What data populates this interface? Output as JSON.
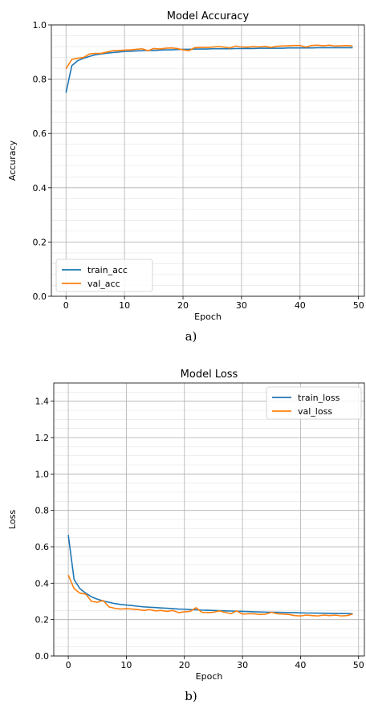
{
  "chart_data": [
    {
      "type": "line",
      "caption": "a)",
      "title": "Model Accuracy",
      "xlabel": "Epoch",
      "ylabel": "Accuracy",
      "xlim": [
        -2.5,
        51
      ],
      "ylim": [
        0.0,
        1.0
      ],
      "xticks": [
        0,
        10,
        20,
        30,
        40,
        50
      ],
      "yticks": [
        0.0,
        0.2,
        0.4,
        0.6,
        0.8,
        1.0
      ],
      "ytick_labels": [
        "0.0",
        "0.2",
        "0.4",
        "0.6",
        "0.8",
        "1.0"
      ],
      "minor_ystep": 0.04,
      "grid": "on",
      "legend": "lower-left",
      "series": [
        {
          "name": "train_acc",
          "color": "#1f77b4",
          "x": [
            0,
            1,
            2,
            3,
            4,
            5,
            6,
            7,
            8,
            9,
            10,
            11,
            12,
            13,
            14,
            15,
            16,
            17,
            18,
            19,
            20,
            21,
            22,
            23,
            24,
            25,
            26,
            27,
            28,
            29,
            30,
            31,
            32,
            33,
            34,
            35,
            36,
            37,
            38,
            39,
            40,
            41,
            42,
            43,
            44,
            45,
            46,
            47,
            48,
            49
          ],
          "values": [
            0.75,
            0.85,
            0.868,
            0.877,
            0.884,
            0.89,
            0.893,
            0.896,
            0.898,
            0.9,
            0.902,
            0.903,
            0.904,
            0.905,
            0.906,
            0.906,
            0.907,
            0.908,
            0.908,
            0.909,
            0.91,
            0.91,
            0.911,
            0.911,
            0.911,
            0.912,
            0.912,
            0.912,
            0.912,
            0.913,
            0.913,
            0.913,
            0.913,
            0.914,
            0.914,
            0.914,
            0.914,
            0.914,
            0.915,
            0.915,
            0.915,
            0.915,
            0.915,
            0.916,
            0.916,
            0.916,
            0.916,
            0.916,
            0.916,
            0.916
          ]
        },
        {
          "name": "val_acc",
          "color": "#ff7f0e",
          "x": [
            0,
            1,
            2,
            3,
            4,
            5,
            6,
            7,
            8,
            9,
            10,
            11,
            12,
            13,
            14,
            15,
            16,
            17,
            18,
            19,
            20,
            21,
            22,
            23,
            24,
            25,
            26,
            27,
            28,
            29,
            30,
            31,
            32,
            33,
            34,
            35,
            36,
            37,
            38,
            39,
            40,
            41,
            42,
            43,
            44,
            45,
            46,
            47,
            48,
            49
          ],
          "values": [
            0.838,
            0.873,
            0.877,
            0.88,
            0.893,
            0.895,
            0.895,
            0.9,
            0.905,
            0.906,
            0.907,
            0.908,
            0.91,
            0.912,
            0.905,
            0.913,
            0.911,
            0.914,
            0.915,
            0.913,
            0.908,
            0.905,
            0.916,
            0.917,
            0.917,
            0.918,
            0.92,
            0.918,
            0.915,
            0.922,
            0.919,
            0.918,
            0.92,
            0.919,
            0.921,
            0.917,
            0.921,
            0.922,
            0.923,
            0.924,
            0.924,
            0.918,
            0.924,
            0.925,
            0.923,
            0.925,
            0.922,
            0.923,
            0.924,
            0.922
          ]
        }
      ]
    },
    {
      "type": "line",
      "caption": "b)",
      "title": "Model Loss",
      "xlabel": "Epoch",
      "ylabel": "Loss",
      "xlim": [
        -2.5,
        51
      ],
      "ylim": [
        0.0,
        1.5
      ],
      "xticks": [
        0,
        10,
        20,
        30,
        40,
        50
      ],
      "yticks": [
        0.0,
        0.2,
        0.4,
        0.6,
        0.8,
        1.0,
        1.2,
        1.4
      ],
      "ytick_labels": [
        "0.0",
        "0.2",
        "0.4",
        "0.6",
        "0.8",
        "1.0",
        "1.2",
        "1.4"
      ],
      "minor_ystep": 0.05,
      "grid": "on",
      "legend": "top-right",
      "series": [
        {
          "name": "train_loss",
          "color": "#1f77b4",
          "x": [
            0,
            1,
            2,
            3,
            4,
            5,
            6,
            7,
            8,
            9,
            10,
            11,
            12,
            13,
            14,
            15,
            16,
            17,
            18,
            19,
            20,
            21,
            22,
            23,
            24,
            25,
            26,
            27,
            28,
            29,
            30,
            31,
            32,
            33,
            34,
            35,
            36,
            37,
            38,
            39,
            40,
            41,
            42,
            43,
            44,
            45,
            46,
            47,
            48,
            49
          ],
          "values": [
            0.665,
            0.42,
            0.37,
            0.345,
            0.325,
            0.312,
            0.302,
            0.295,
            0.288,
            0.283,
            0.28,
            0.277,
            0.273,
            0.27,
            0.268,
            0.266,
            0.264,
            0.262,
            0.26,
            0.258,
            0.257,
            0.255,
            0.254,
            0.252,
            0.251,
            0.25,
            0.249,
            0.248,
            0.247,
            0.246,
            0.245,
            0.244,
            0.243,
            0.242,
            0.241,
            0.24,
            0.24,
            0.239,
            0.238,
            0.238,
            0.237,
            0.236,
            0.236,
            0.235,
            0.235,
            0.234,
            0.234,
            0.233,
            0.233,
            0.232
          ]
        },
        {
          "name": "val_loss",
          "color": "#ff7f0e",
          "x": [
            0,
            1,
            2,
            3,
            4,
            5,
            6,
            7,
            8,
            9,
            10,
            11,
            12,
            13,
            14,
            15,
            16,
            17,
            18,
            19,
            20,
            21,
            22,
            23,
            24,
            25,
            26,
            27,
            28,
            29,
            30,
            31,
            32,
            33,
            34,
            35,
            36,
            37,
            38,
            39,
            40,
            41,
            42,
            43,
            44,
            45,
            46,
            47,
            48,
            49
          ],
          "values": [
            0.445,
            0.37,
            0.345,
            0.34,
            0.3,
            0.295,
            0.305,
            0.27,
            0.262,
            0.258,
            0.26,
            0.258,
            0.255,
            0.25,
            0.255,
            0.248,
            0.25,
            0.245,
            0.25,
            0.238,
            0.243,
            0.245,
            0.265,
            0.24,
            0.238,
            0.24,
            0.248,
            0.24,
            0.232,
            0.248,
            0.23,
            0.232,
            0.232,
            0.228,
            0.23,
            0.24,
            0.232,
            0.23,
            0.228,
            0.222,
            0.22,
            0.225,
            0.222,
            0.22,
            0.225,
            0.222,
            0.225,
            0.22,
            0.222,
            0.23
          ]
        }
      ]
    }
  ]
}
